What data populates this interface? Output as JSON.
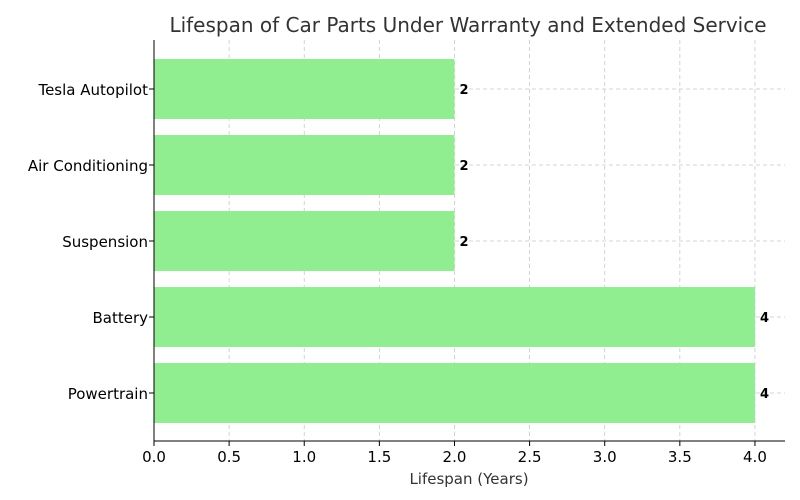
{
  "chart_data": {
    "type": "bar",
    "orientation": "horizontal",
    "title": "Lifespan of Car Parts Under Warranty and Extended Service",
    "xlabel": "Lifespan (Years)",
    "ylabel": "",
    "categories": [
      "Powertrain",
      "Battery",
      "Suspension",
      "Air Conditioning",
      "Tesla Autopilot"
    ],
    "values": [
      4,
      4,
      2,
      2,
      2
    ],
    "data_labels": [
      "4",
      "4",
      "2",
      "2",
      "2"
    ],
    "xlim": [
      0,
      4.2
    ],
    "xticks": [
      0.0,
      0.5,
      1.0,
      1.5,
      2.0,
      2.5,
      3.0,
      3.5,
      4.0
    ],
    "xtick_labels": [
      "0.0",
      "0.5",
      "1.0",
      "1.5",
      "2.0",
      "2.5",
      "3.0",
      "3.5",
      "4.0"
    ],
    "grid": true,
    "bar_color": "#90ee90"
  }
}
